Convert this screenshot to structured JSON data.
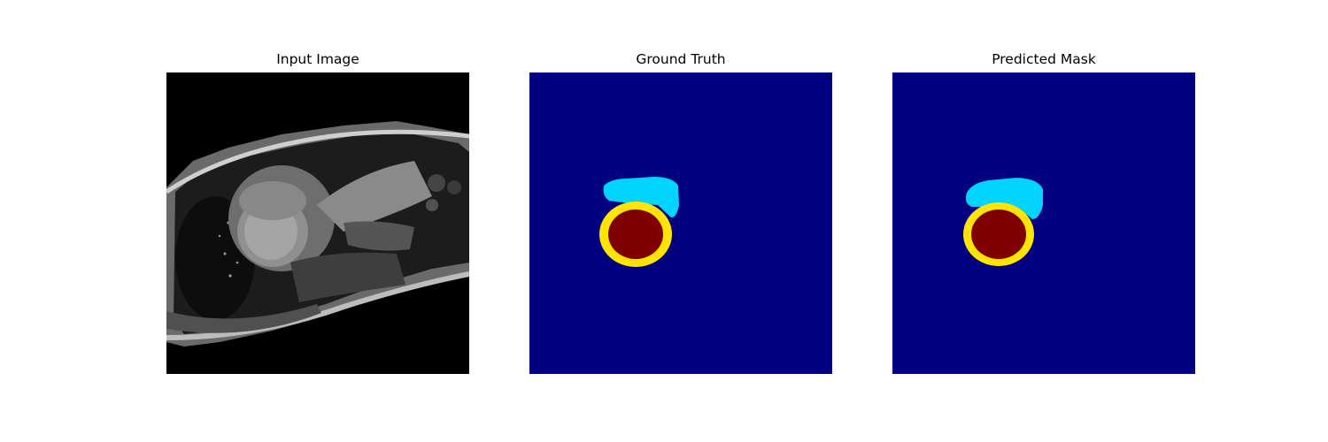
{
  "panels": [
    {
      "title": "Input Image",
      "kind": "mri-slice"
    },
    {
      "title": "Ground Truth",
      "kind": "segmentation-mask"
    },
    {
      "title": "Predicted Mask",
      "kind": "segmentation-mask"
    }
  ],
  "colors": {
    "background": "#000080",
    "right_ventricle": "#00d4ff",
    "myocardium": "#ffe500",
    "left_ventricle": "#800000"
  }
}
